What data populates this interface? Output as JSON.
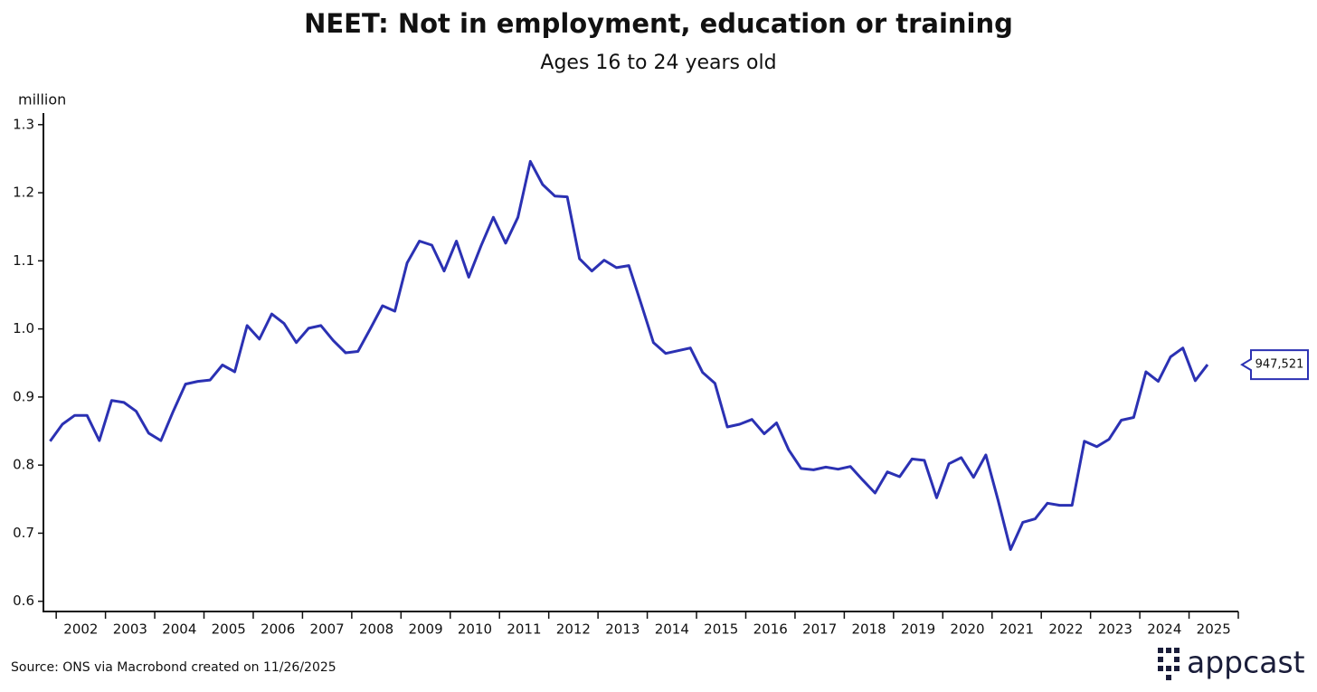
{
  "chart_data": {
    "type": "line",
    "title": "NEET: Not in employment, education or training",
    "subtitle": "Ages 16 to 24 years old",
    "y_unit": "million",
    "source": "Source: ONS via Macrobond created on 11/26/2025",
    "brand": "appcast",
    "x": [
      2001.875,
      2002.125,
      2002.375,
      2002.625,
      2002.875,
      2003.125,
      2003.375,
      2003.625,
      2003.875,
      2004.125,
      2004.375,
      2004.625,
      2004.875,
      2005.125,
      2005.375,
      2005.625,
      2005.875,
      2006.125,
      2006.375,
      2006.625,
      2006.875,
      2007.125,
      2007.375,
      2007.625,
      2007.875,
      2008.125,
      2008.375,
      2008.625,
      2008.875,
      2009.125,
      2009.375,
      2009.625,
      2009.875,
      2010.125,
      2010.375,
      2010.625,
      2010.875,
      2011.125,
      2011.375,
      2011.625,
      2011.875,
      2012.125,
      2012.375,
      2012.625,
      2012.875,
      2013.125,
      2013.375,
      2013.625,
      2013.875,
      2014.125,
      2014.375,
      2014.625,
      2014.875,
      2015.125,
      2015.375,
      2015.625,
      2015.875,
      2016.125,
      2016.375,
      2016.625,
      2016.875,
      2017.125,
      2017.375,
      2017.625,
      2017.875,
      2018.125,
      2018.375,
      2018.625,
      2018.875,
      2019.125,
      2019.375,
      2019.625,
      2019.875,
      2020.125,
      2020.375,
      2020.625,
      2020.875,
      2021.125,
      2021.375,
      2021.625,
      2021.875,
      2022.125,
      2022.375,
      2022.625,
      2022.875,
      2023.125,
      2023.375,
      2023.625,
      2023.875,
      2024.125,
      2024.375,
      2024.625,
      2024.875,
      2025.125,
      2025.375
    ],
    "series": [
      {
        "color": "#2b31b3",
        "values": [
          0.835,
          0.86,
          0.873,
          0.873,
          0.836,
          0.895,
          0.892,
          0.879,
          0.847,
          0.836,
          0.879,
          0.919,
          0.923,
          0.925,
          0.947,
          0.937,
          1.005,
          0.985,
          1.022,
          1.008,
          0.98,
          1.001,
          1.005,
          0.983,
          0.965,
          0.967,
          1.0,
          1.034,
          1.026,
          1.097,
          1.129,
          1.123,
          1.085,
          1.129,
          1.076,
          1.122,
          1.164,
          1.126,
          1.164,
          1.246,
          1.212,
          1.195,
          1.194,
          1.103,
          1.085,
          1.101,
          1.09,
          1.093,
          1.037,
          0.98,
          0.964,
          0.968,
          0.972,
          0.936,
          0.92,
          0.856,
          0.86,
          0.867,
          0.846,
          0.862,
          0.822,
          0.795,
          0.793,
          0.797,
          0.794,
          0.798,
          0.778,
          0.759,
          0.79,
          0.783,
          0.809,
          0.807,
          0.752,
          0.802,
          0.811,
          0.782,
          0.815,
          0.748,
          0.676,
          0.716,
          0.721,
          0.744,
          0.741,
          0.741,
          0.835,
          0.827,
          0.838,
          0.866,
          0.87,
          0.937,
          0.923,
          0.959,
          0.972,
          0.924,
          0.947521
        ],
        "value_labels": [
          null,
          null,
          null,
          null,
          null,
          null,
          null,
          null,
          null,
          null,
          null,
          null,
          null,
          null,
          null,
          null,
          null,
          null,
          null,
          null,
          null,
          null,
          null,
          null,
          null,
          null,
          null,
          null,
          null,
          null,
          null,
          null,
          null,
          null,
          null,
          null,
          null,
          null,
          null,
          null,
          null,
          null,
          null,
          null,
          null,
          null,
          null,
          null,
          null,
          null,
          null,
          null,
          null,
          null,
          null,
          null,
          null,
          null,
          null,
          null,
          null,
          null,
          null,
          null,
          null,
          null,
          null,
          null,
          null,
          null,
          null,
          null,
          null,
          null,
          null,
          null,
          null,
          null,
          null,
          null,
          null,
          null,
          null,
          null,
          null,
          null,
          null,
          null,
          null,
          null,
          null,
          null,
          null,
          null,
          "947,521"
        ]
      }
    ],
    "xlim": [
      2001.74,
      2026
    ],
    "xticks": [
      2002,
      2003,
      2004,
      2005,
      2006,
      2007,
      2008,
      2009,
      2010,
      2011,
      2012,
      2013,
      2014,
      2015,
      2016,
      2017,
      2018,
      2019,
      2020,
      2021,
      2022,
      2023,
      2024,
      2025
    ],
    "ylim": [
      0.585,
      1.317
    ],
    "yticks": [
      0.6,
      0.7,
      0.8,
      0.9,
      {
        "value": 1,
        "label": "1.0"
      },
      1.1,
      1.2,
      1.3
    ]
  }
}
